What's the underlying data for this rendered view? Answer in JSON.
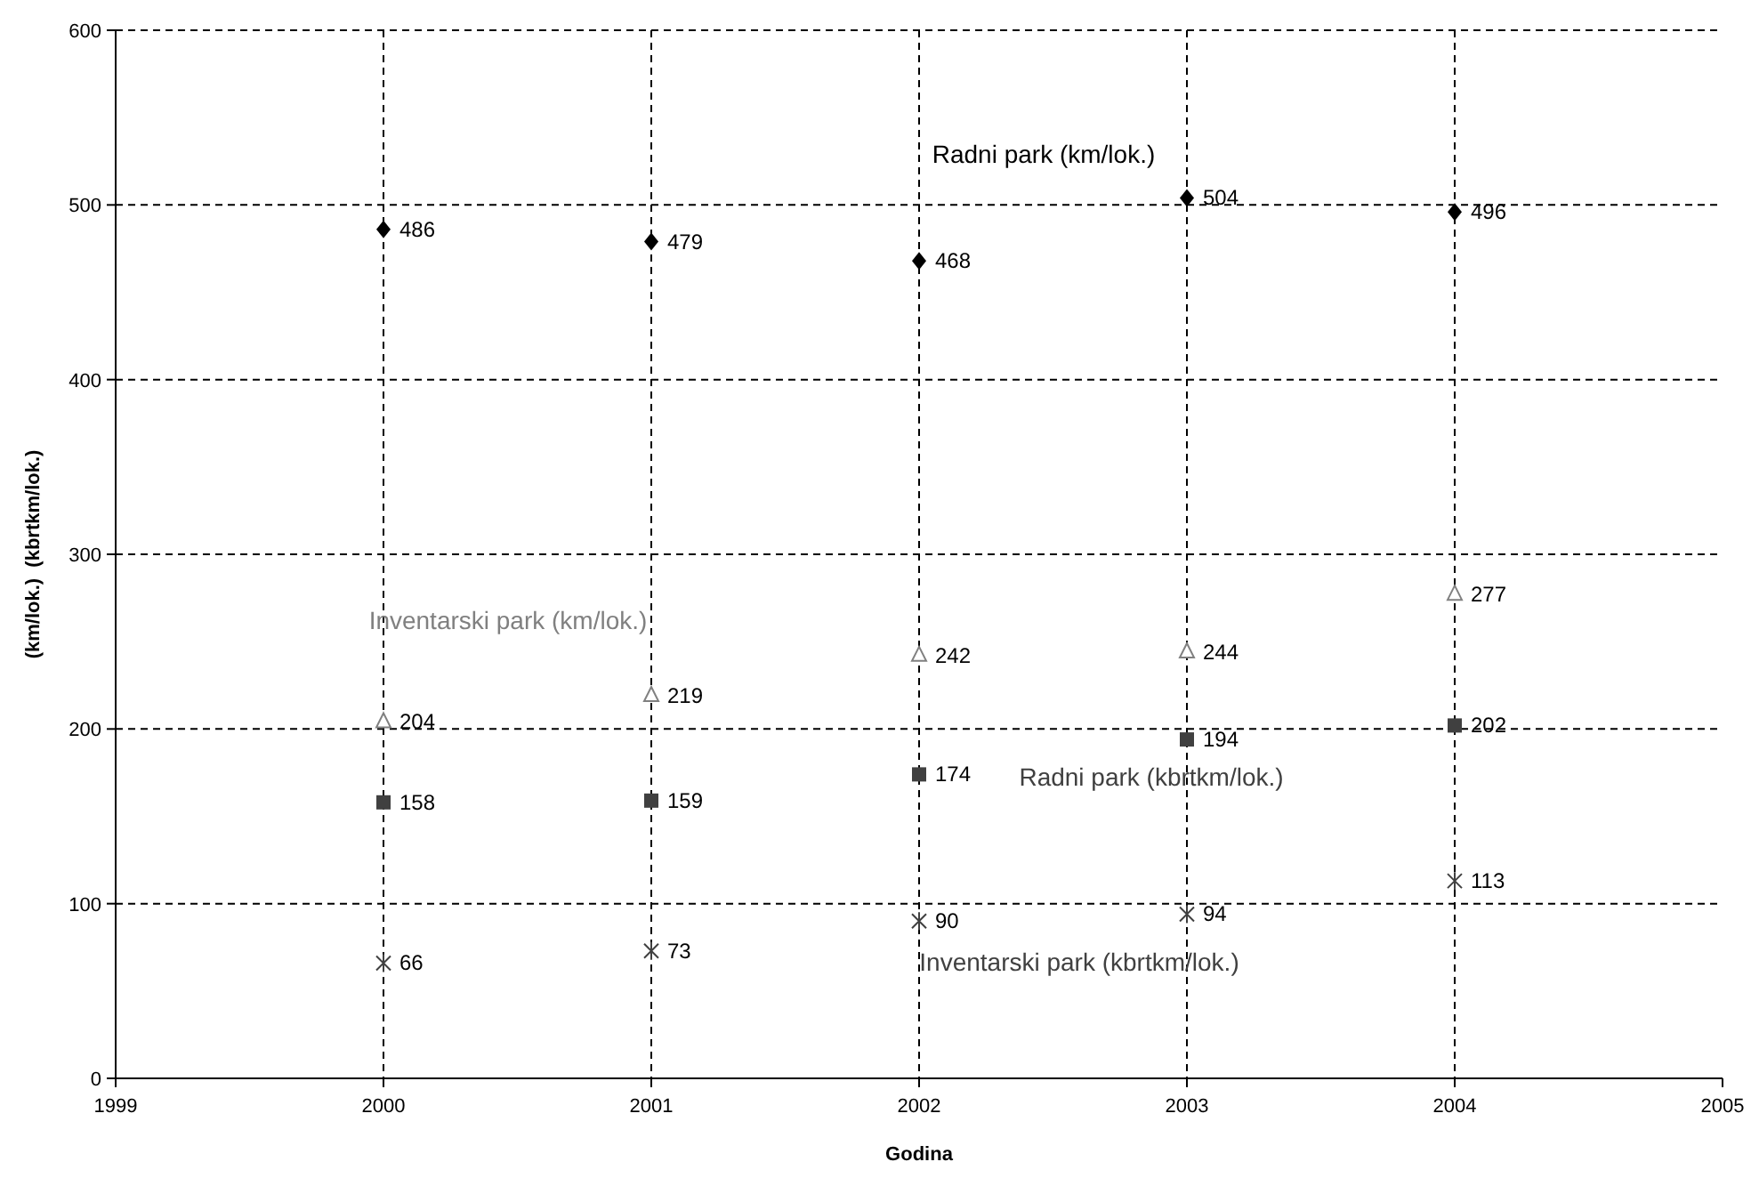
{
  "chart_data": {
    "type": "scatter",
    "xlabel": "Godina",
    "ylabel": "(km/lok.)  (kbrtkm/lok.)",
    "x": [
      2000,
      2001,
      2002,
      2003,
      2004
    ],
    "xlim": [
      1999,
      2005
    ],
    "xticks": [
      1999,
      2000,
      2001,
      2002,
      2003,
      2004,
      2005
    ],
    "ylim": [
      0,
      600
    ],
    "yticks": [
      0,
      100,
      200,
      300,
      400,
      500,
      600
    ],
    "grid": true,
    "data_labels": true,
    "series": [
      {
        "name": "Radni park (km/lok.)",
        "color": "#000000",
        "marker": "diamond",
        "values": [
          486,
          479,
          468,
          504,
          496
        ]
      },
      {
        "name": "Inventarski park (km/lok.)",
        "color": "#808080",
        "marker": "triangle",
        "values": [
          204,
          219,
          242,
          244,
          277
        ]
      },
      {
        "name": "Radni park (kbrtkm/lok.)",
        "color": "#404040",
        "marker": "square",
        "values": [
          158,
          159,
          174,
          194,
          202
        ]
      },
      {
        "name": "Inventarski park (kbrtkm/lok.)",
        "color": "#404040",
        "marker": "cross",
        "values": [
          66,
          73,
          90,
          94,
          113
        ]
      }
    ]
  }
}
